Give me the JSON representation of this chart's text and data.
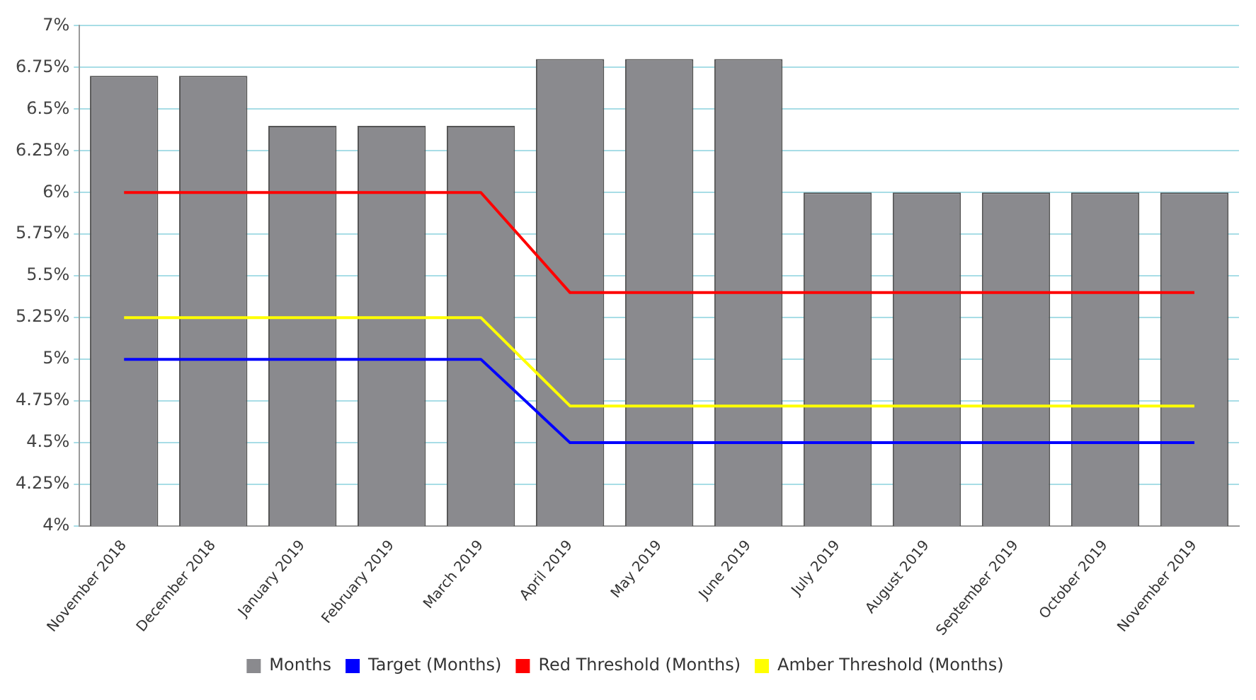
{
  "chart_data": {
    "type": "bar",
    "categories": [
      "November 2018",
      "December 2018",
      "January 2019",
      "February 2019",
      "March 2019",
      "April 2019",
      "May 2019",
      "June 2019",
      "July 2019",
      "August 2019",
      "September 2019",
      "October 2019",
      "November 2019"
    ],
    "series": [
      {
        "name": "Months",
        "color": "#8a8a8e",
        "values": [
          6.7,
          6.7,
          6.4,
          6.4,
          6.4,
          6.8,
          6.8,
          6.8,
          6,
          6,
          6,
          6,
          6
        ]
      },
      {
        "name": "Target (Months)",
        "type": "line",
        "color": "#0000ff",
        "values": [
          5,
          5,
          5,
          5,
          5,
          4.5,
          4.5,
          4.5,
          4.5,
          4.5,
          4.5,
          4.5,
          4.5
        ]
      },
      {
        "name": "Red Threshold (Months)",
        "type": "line",
        "color": "#ff0000",
        "values": [
          6,
          6,
          6,
          6,
          6,
          5.4,
          5.4,
          5.4,
          5.4,
          5.4,
          5.4,
          5.4,
          5.4
        ]
      },
      {
        "name": "Amber Threshold (Months)",
        "type": "line",
        "color": "#ffff00",
        "values": [
          5.25,
          5.25,
          5.25,
          5.25,
          5.25,
          4.72,
          4.72,
          4.72,
          4.72,
          4.72,
          4.72,
          4.72,
          4.72
        ]
      }
    ],
    "ylim": [
      4,
      7
    ],
    "yticks": [
      {
        "value": 4,
        "label": "4%"
      },
      {
        "value": 4.25,
        "label": "4.25%"
      },
      {
        "value": 4.5,
        "label": "4.5%"
      },
      {
        "value": 4.75,
        "label": "4.75%"
      },
      {
        "value": 5,
        "label": "5%"
      },
      {
        "value": 5.25,
        "label": "5.25%"
      },
      {
        "value": 5.5,
        "label": "5.5%"
      },
      {
        "value": 5.75,
        "label": "5.75%"
      },
      {
        "value": 6,
        "label": "6%"
      },
      {
        "value": 6.25,
        "label": "6.25%"
      },
      {
        "value": 6.5,
        "label": "6.5%"
      },
      {
        "value": 6.75,
        "label": "6.75%"
      },
      {
        "value": 7,
        "label": "7%"
      }
    ],
    "grid": "y",
    "legend": "bottom",
    "marker": "none",
    "line_style": "solid"
  }
}
